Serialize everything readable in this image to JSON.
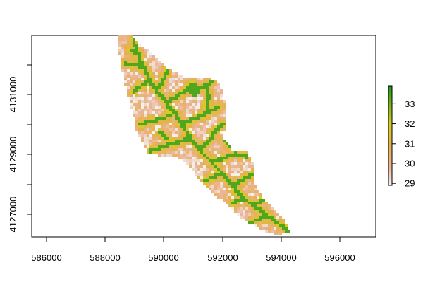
{
  "map": {
    "x_ticks": [
      "586000",
      "588000",
      "590000",
      "592000",
      "594000",
      "596000"
    ],
    "y_ticks": [
      "4127000",
      "4129000",
      "4131000"
    ],
    "x_range": [
      585500,
      597200
    ],
    "y_range": [
      4125700,
      4132900
    ],
    "raster": {
      "description_values": "elevation-like raster of a river basin",
      "value_range": [
        29,
        33.8
      ]
    }
  },
  "legend": {
    "ticks": [
      "29",
      "30",
      "31",
      "32",
      "33"
    ],
    "tick_values": [
      29,
      30,
      31,
      32,
      33
    ],
    "min": 28.9,
    "max": 33.9
  },
  "colors": {
    "low": "#f2f2f2",
    "mid_low": "#ebb69a",
    "mid": "#e6b04d",
    "mid_high": "#d6cd24",
    "high": "#1f9a1f"
  }
}
